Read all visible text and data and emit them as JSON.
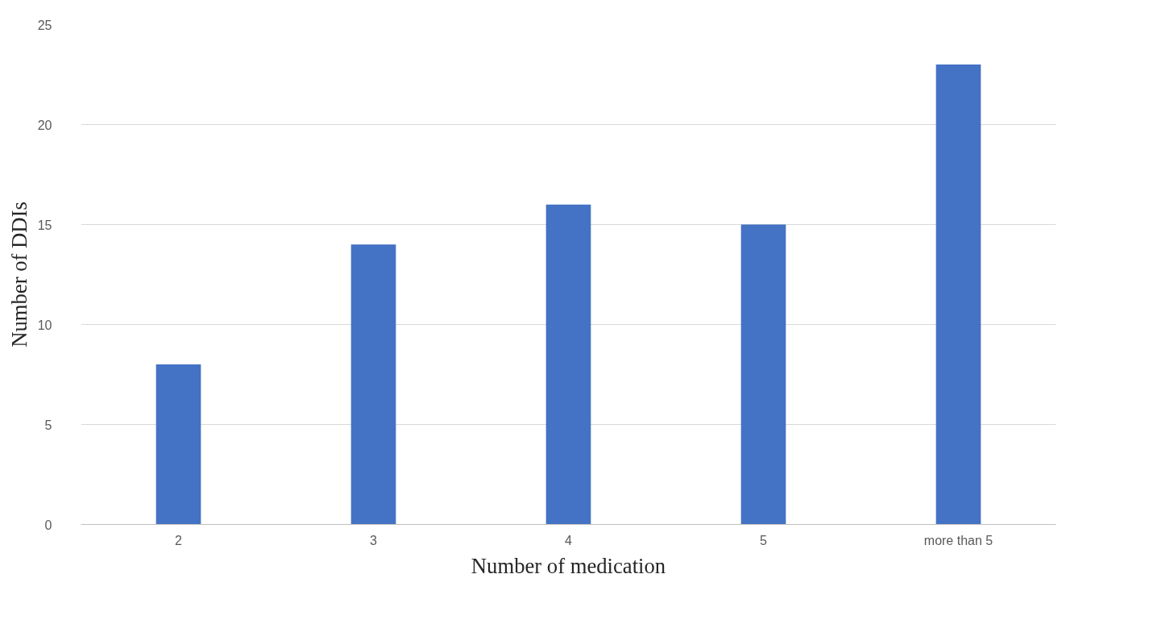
{
  "chart_data": {
    "type": "bar",
    "xlabel": "Number of medication",
    "ylabel": "Number of DDIs",
    "categories": [
      "2",
      "3",
      "4",
      "5",
      "more than 5"
    ],
    "values": [
      8,
      14,
      16,
      15,
      23
    ],
    "color": "#4472c4",
    "ylim": [
      0,
      25
    ],
    "yticks": [
      0,
      5,
      10,
      15,
      20,
      25
    ],
    "grid": "y"
  }
}
